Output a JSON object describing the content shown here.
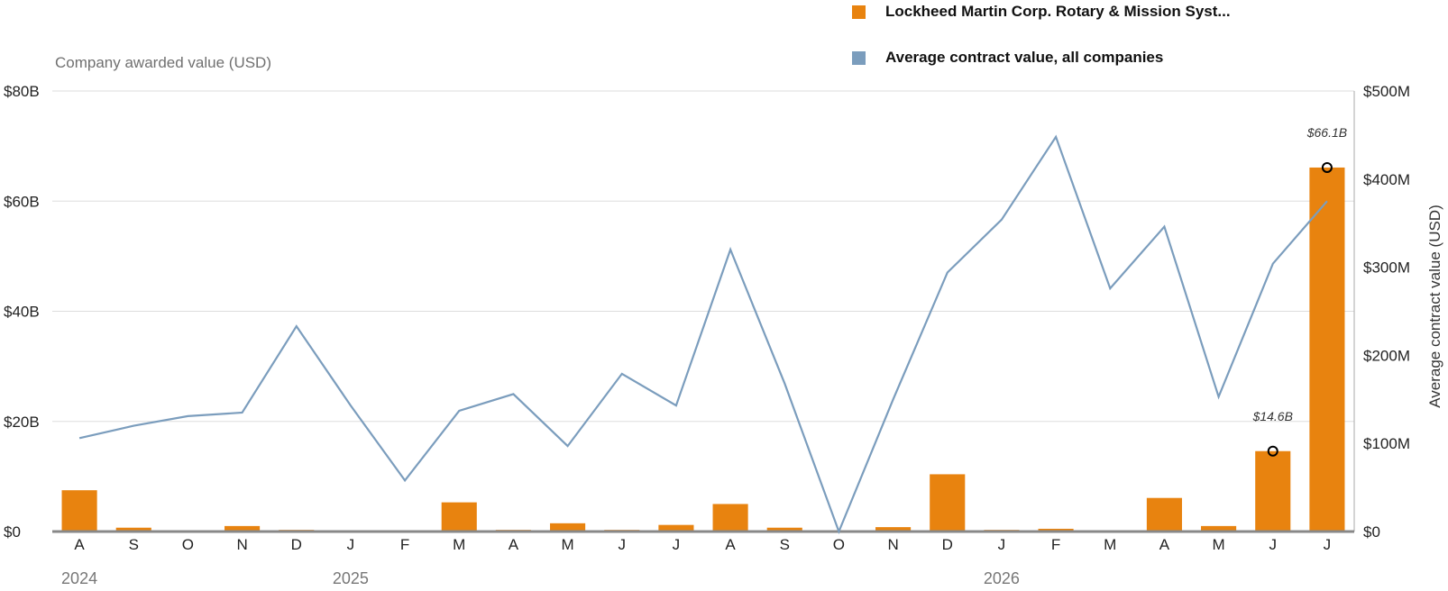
{
  "legend": {
    "company_label": "Lockheed Martin Corp. Rotary & Mission Syst...",
    "average_label": "Average contract value, all companies"
  },
  "axes": {
    "left_title": "Company awarded value (USD)",
    "right_title": "Average contract value (USD)"
  },
  "colors": {
    "bar": "#E8830F",
    "line": "#7B9DBD",
    "grid": "#dddddd",
    "baseline": "#888888"
  },
  "chart_data": {
    "type": "bar",
    "categories": [
      "A",
      "S",
      "O",
      "N",
      "D",
      "J",
      "F",
      "M",
      "A",
      "M",
      "J",
      "J",
      "A",
      "S",
      "O",
      "N",
      "D",
      "J",
      "F",
      "M",
      "A",
      "M",
      "J",
      "J"
    ],
    "year_labels": [
      {
        "label": "2024",
        "index": 0
      },
      {
        "label": "2025",
        "index": 5
      },
      {
        "label": "2026",
        "index": 17
      }
    ],
    "series": [
      {
        "name": "Lockheed Martin Corp. Rotary & Mission Syst...",
        "type": "bar",
        "axis": "left",
        "unit": "USD billions",
        "values": [
          7.5,
          0.7,
          0,
          1.0,
          0.3,
          0,
          0,
          5.3,
          0.3,
          1.5,
          0.3,
          1.2,
          5.0,
          0.7,
          0,
          0.8,
          10.4,
          0.3,
          0.5,
          0,
          6.1,
          1.0,
          14.6,
          66.1
        ]
      },
      {
        "name": "Average contract value, all companies",
        "type": "line",
        "axis": "right",
        "unit": "USD millions",
        "values": [
          106,
          120,
          131,
          135,
          233,
          143,
          58,
          137,
          156,
          97,
          179,
          143,
          320,
          168,
          0,
          150,
          294,
          354,
          448,
          276,
          346,
          153,
          304,
          375
        ]
      }
    ],
    "left_axis": {
      "ylim": [
        0,
        80
      ],
      "ticks": [
        0,
        20,
        40,
        60,
        80
      ],
      "tick_labels": [
        "$0",
        "$20B",
        "$40B",
        "$60B",
        "$80B"
      ]
    },
    "right_axis": {
      "ylim": [
        0,
        500
      ],
      "ticks": [
        0,
        100,
        200,
        300,
        400,
        500
      ],
      "tick_labels": [
        "$0",
        "$100M",
        "$200M",
        "$300M",
        "$400M",
        "$500M"
      ]
    },
    "annotations": [
      {
        "index": 22,
        "value": 14.6,
        "label": "$14.6B"
      },
      {
        "index": 23,
        "value": 66.1,
        "label": "$66.1B"
      }
    ],
    "grid": true,
    "legend_position": "top-right"
  }
}
